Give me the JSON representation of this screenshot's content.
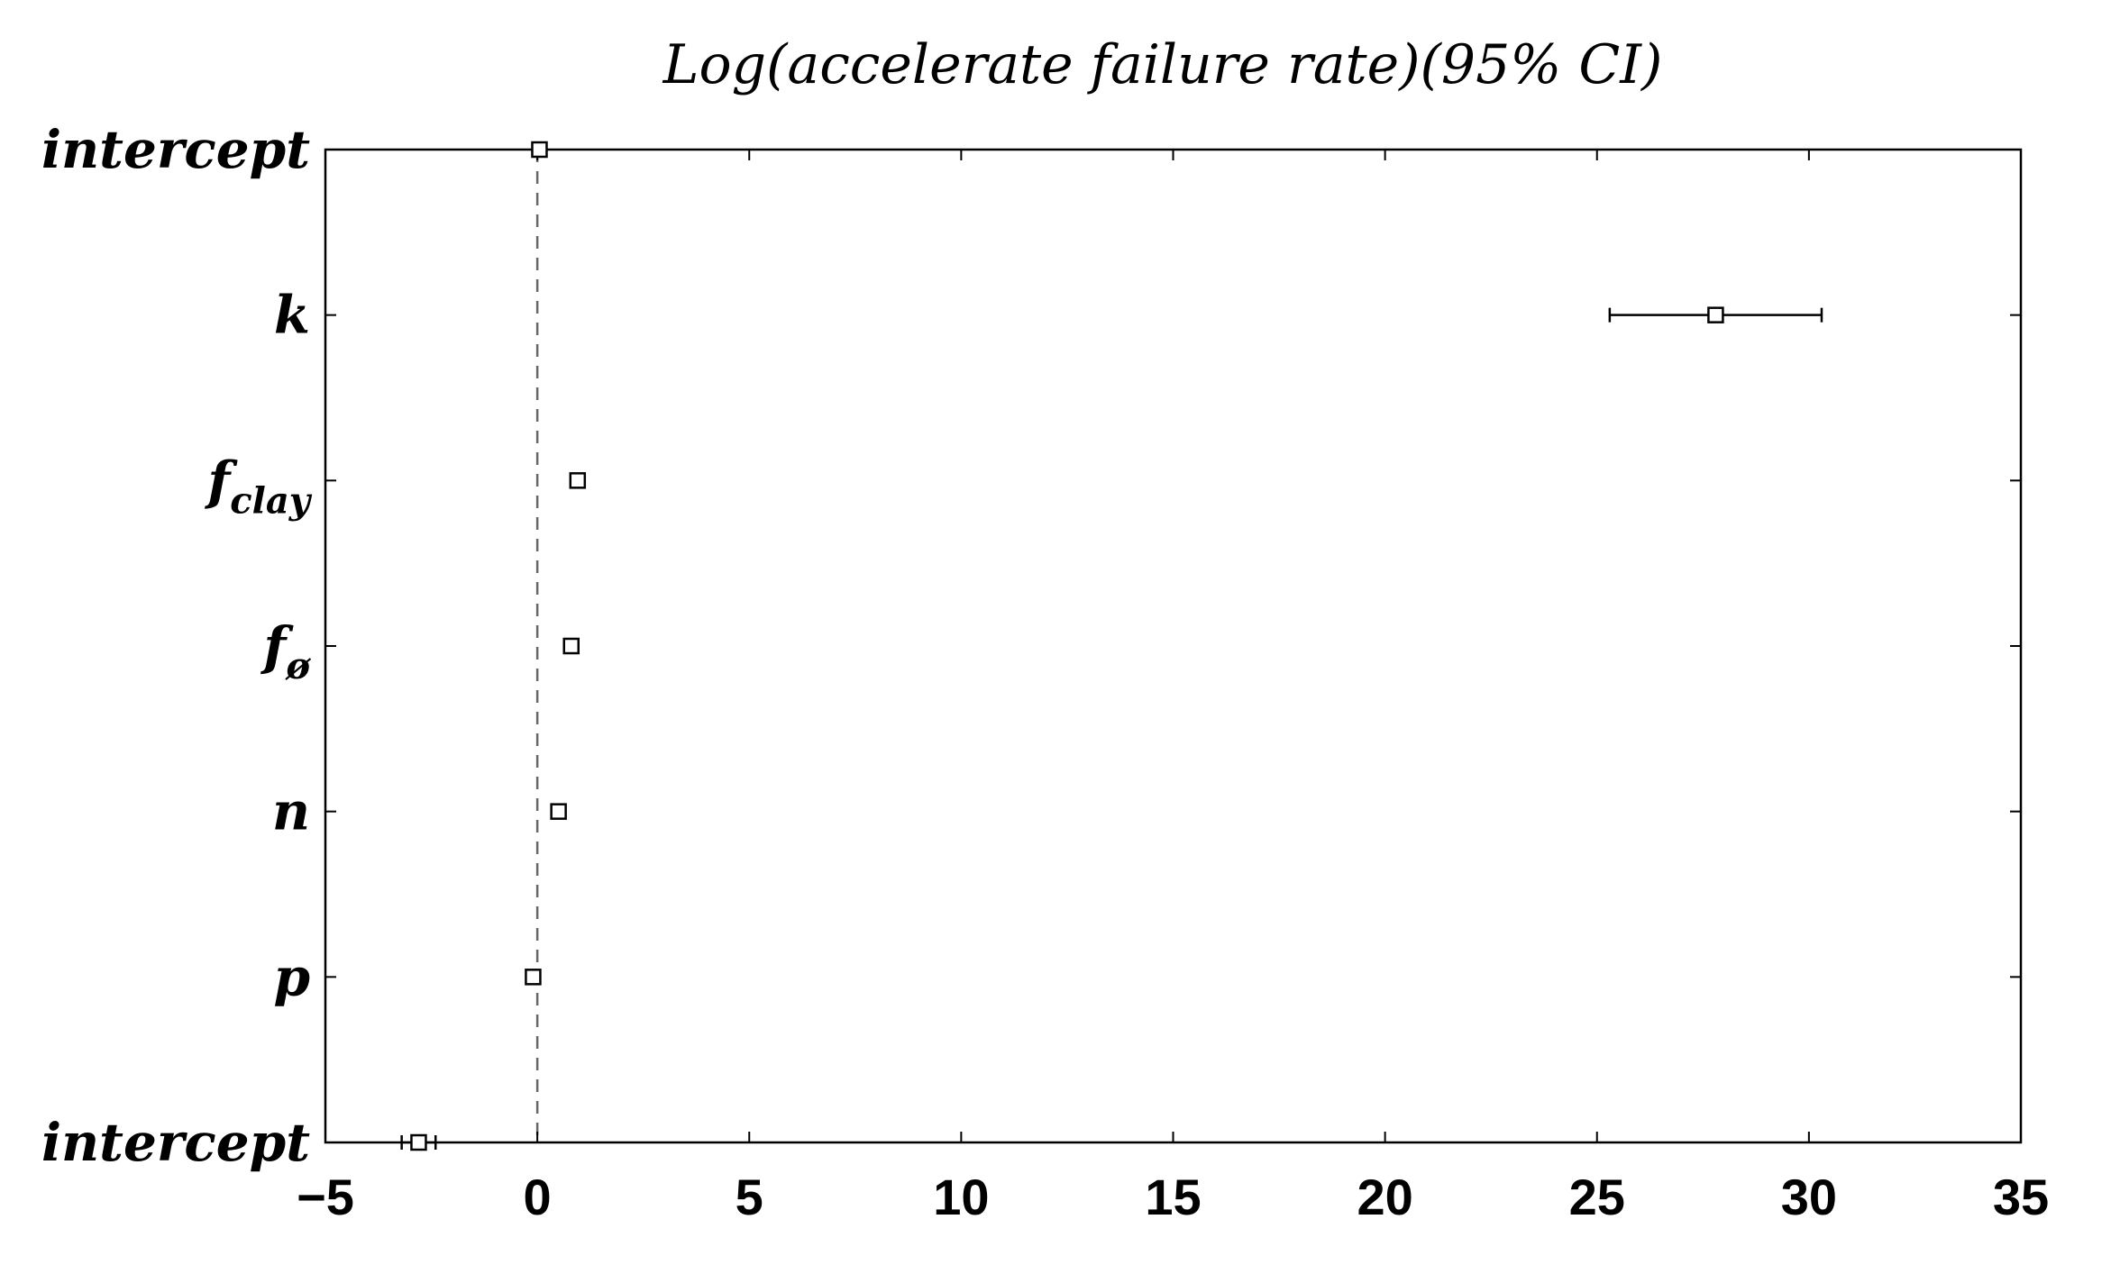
{
  "chart_data": {
    "type": "scatter",
    "title": "Log(accelerate failure rate)(95% CI)",
    "xlabel": "",
    "ylabel": "",
    "xlim": [
      -5,
      35
    ],
    "x_ticks": [
      -5,
      0,
      5,
      10,
      15,
      20,
      25,
      30,
      35
    ],
    "x_tick_labels": [
      "−5",
      "0",
      "5",
      "10",
      "15",
      "20",
      "25",
      "30",
      "35"
    ],
    "reference_line_x": 0,
    "grid": false,
    "legend": "none",
    "colors": {
      "marks": "#000000",
      "reference_line": "#666666",
      "background": "#ffffff"
    },
    "categories": [
      {
        "main": "intercept",
        "sub": ""
      },
      {
        "main": "k",
        "sub": ""
      },
      {
        "main": "f",
        "sub": "clay"
      },
      {
        "main": "f",
        "sub": "ø"
      },
      {
        "main": "n",
        "sub": ""
      },
      {
        "main": "p",
        "sub": ""
      },
      {
        "main": "intercept",
        "sub": ""
      }
    ],
    "points": [
      {
        "estimate": 0.05,
        "lower": 0.05,
        "upper": 0.05
      },
      {
        "estimate": 27.8,
        "lower": 25.3,
        "upper": 30.3
      },
      {
        "estimate": 0.95,
        "lower": 0.95,
        "upper": 0.95
      },
      {
        "estimate": 0.8,
        "lower": 0.8,
        "upper": 0.8
      },
      {
        "estimate": 0.5,
        "lower": 0.5,
        "upper": 0.5
      },
      {
        "estimate": -0.1,
        "lower": -0.1,
        "upper": -0.1
      },
      {
        "estimate": -2.8,
        "lower": -3.2,
        "upper": -2.4
      }
    ]
  }
}
